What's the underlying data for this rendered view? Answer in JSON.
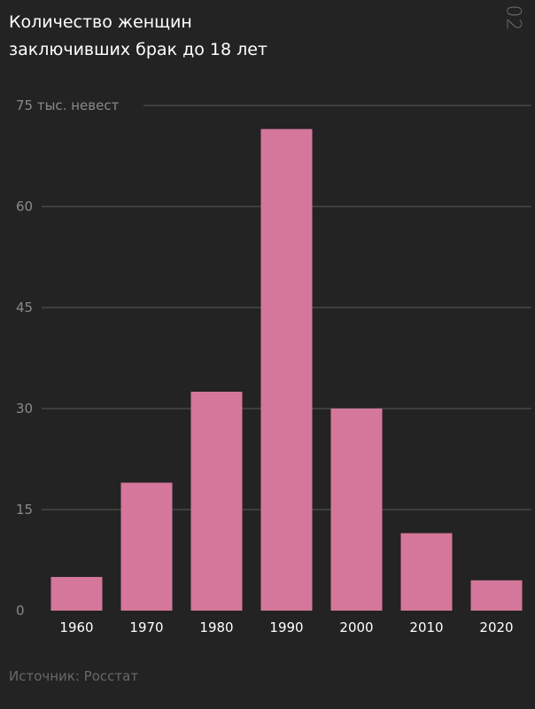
{
  "header": {
    "title_line1": "Количество женщин",
    "title_line2": "заключивших брак до 18 лет",
    "page_number": "02"
  },
  "footer": {
    "source": "Источник: Росстат"
  },
  "chart_data": {
    "type": "bar",
    "title": "Количество женщин заключивших брак до 18 лет",
    "categories": [
      "1960",
      "1970",
      "1980",
      "1990",
      "2000",
      "2010",
      "2020"
    ],
    "values": [
      5,
      19,
      32.5,
      71.5,
      30,
      11.5,
      4.5
    ],
    "yticks": [
      0,
      15,
      30,
      45,
      60,
      75
    ],
    "ytick_labels": [
      "0",
      "15",
      "30",
      "45",
      "60",
      "75 тыс. невест"
    ],
    "ylim": [
      0,
      75
    ],
    "grid": true,
    "bar_color": "#d4779a",
    "grid_color": "#5a5a5a"
  }
}
